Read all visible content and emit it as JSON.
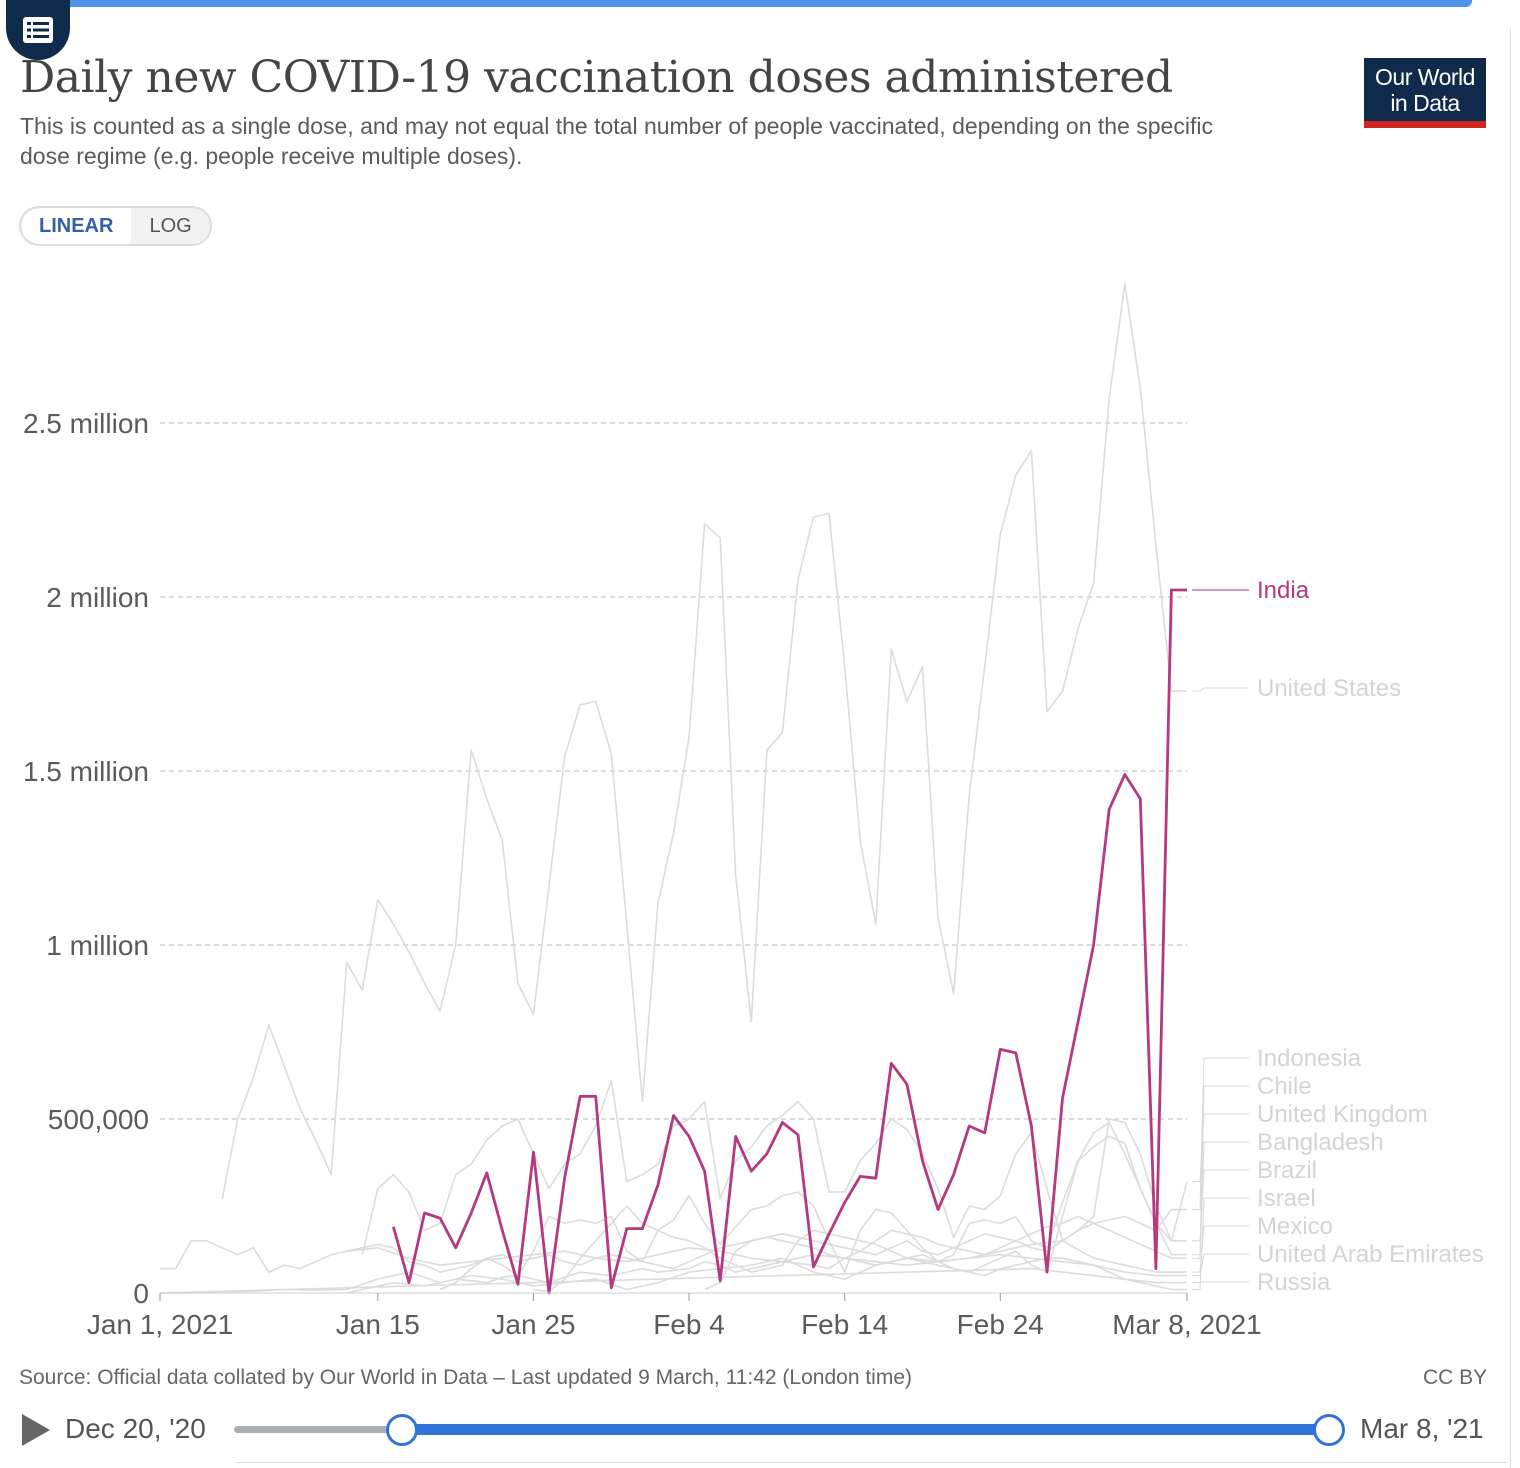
{
  "header": {
    "title": "Daily new COVID-19 vaccination doses administered",
    "subtitle": "This is counted as a single dose, and may not equal the total number of people vaccinated, depending on the specific dose regime (e.g. people receive multiple doses).",
    "logo_line1": "Our World",
    "logo_line2": "in Data"
  },
  "controls": {
    "linear_label": "LINEAR",
    "log_label": "LOG",
    "active_scale": "linear"
  },
  "footer": {
    "source": "Source: Official data collated by Our World in Data – Last updated 9 March, 11:42 (London time)",
    "license": "CC BY"
  },
  "timeline": {
    "start_label": "Dec 20, '20",
    "end_label": "Mar 8, '21"
  },
  "colors": {
    "highlight": "#b5397f",
    "background_series": "#dcdcdc",
    "grid": "#cfcfcf",
    "accent": "#2f74d9",
    "brand": "#0f2a4a"
  },
  "chart_data": {
    "type": "line",
    "title": "Daily new COVID-19 vaccination doses administered",
    "x_start": "2021-01-01",
    "x_end": "2021-03-08",
    "xlim": [
      0,
      66
    ],
    "ylim": [
      0,
      2900000
    ],
    "y_ticks": [
      0,
      500000,
      1000000,
      1500000,
      2000000,
      2500000
    ],
    "y_tick_labels": [
      "0",
      "500,000",
      "1 million",
      "1.5 million",
      "2 million",
      "2.5 million"
    ],
    "x_ticks": [
      0,
      14,
      24,
      34,
      44,
      54,
      66
    ],
    "x_tick_labels": [
      "Jan 1, 2021",
      "Jan 15",
      "Jan 25",
      "Feb 4",
      "Feb 14",
      "Feb 24",
      "Mar 8, 2021"
    ],
    "grid": true,
    "legend_position": "right (labels at line ends)",
    "series": [
      {
        "name": "India",
        "highlight": true,
        "x": [
          15,
          16,
          17,
          18,
          19,
          20,
          21,
          22,
          23,
          24,
          25,
          26,
          27,
          28,
          29,
          30,
          31,
          32,
          33,
          34,
          35,
          36,
          37,
          38,
          39,
          40,
          41,
          42,
          43,
          44,
          45,
          46,
          47,
          48,
          49,
          50,
          51,
          52,
          53,
          54,
          55,
          56,
          57,
          58,
          59,
          60,
          61,
          62,
          63,
          64,
          65,
          66
        ],
        "values": [
          190000,
          30000,
          230000,
          215000,
          130000,
          230000,
          345000,
          180000,
          25000,
          405000,
          0,
          330000,
          565000,
          565000,
          15000,
          185000,
          185000,
          310000,
          510000,
          450000,
          350000,
          35000,
          450000,
          350000,
          400000,
          490000,
          455000,
          75000,
          170000,
          260000,
          335000,
          330000,
          660000,
          600000,
          380000,
          240000,
          340000,
          480000,
          460000,
          700000,
          690000,
          480000,
          60000,
          560000,
          780000,
          1000000,
          1390000,
          1490000,
          1420000,
          70000,
          2020000,
          2020000
        ]
      },
      {
        "name": "United States",
        "highlight": false,
        "x": [
          4,
          5,
          6,
          7,
          8,
          9,
          10,
          11,
          12,
          13,
          14,
          15,
          16,
          17,
          18,
          19,
          20,
          21,
          22,
          23,
          24,
          25,
          26,
          27,
          28,
          29,
          30,
          31,
          32,
          33,
          34,
          35,
          36,
          37,
          38,
          39,
          40,
          41,
          42,
          43,
          44,
          45,
          46,
          47,
          48,
          49,
          50,
          51,
          52,
          53,
          54,
          55,
          56,
          57,
          58,
          59,
          60,
          61,
          62,
          63,
          64,
          65,
          66
        ],
        "values": [
          270000,
          500000,
          620000,
          770000,
          650000,
          530000,
          440000,
          340000,
          950000,
          870000,
          1130000,
          1060000,
          980000,
          890000,
          810000,
          1000000,
          1560000,
          1420000,
          1300000,
          890000,
          800000,
          1170000,
          1540000,
          1690000,
          1700000,
          1550000,
          1060000,
          550000,
          1120000,
          1320000,
          1600000,
          2210000,
          2170000,
          1200000,
          780000,
          1560000,
          1610000,
          2050000,
          2230000,
          2240000,
          1800000,
          1300000,
          1060000,
          1850000,
          1700000,
          1800000,
          1080000,
          860000,
          1430000,
          1800000,
          2180000,
          2350000,
          2420000,
          1670000,
          1730000,
          1910000,
          2040000,
          2570000,
          2900000,
          2600000,
          2150000,
          1730000,
          1730000
        ]
      },
      {
        "name": "Indonesia",
        "highlight": false,
        "x": [
          12,
          13,
          14,
          15,
          16,
          17,
          18,
          19,
          20,
          21,
          22,
          23,
          24,
          25,
          26,
          27,
          28,
          29,
          30,
          31,
          32,
          33,
          34,
          35,
          36,
          37,
          38,
          39,
          40,
          41,
          42,
          43,
          44,
          45,
          46,
          47,
          48,
          49,
          50,
          51,
          52,
          53,
          54,
          55,
          56,
          57,
          58,
          59,
          60,
          61,
          62,
          63,
          64,
          65,
          66
        ],
        "values": [
          0,
          10000,
          20000,
          30000,
          25000,
          20000,
          30000,
          40000,
          35000,
          30000,
          45000,
          50000,
          40000,
          30000,
          45000,
          60000,
          55000,
          50000,
          60000,
          70000,
          60000,
          65000,
          70000,
          90000,
          80000,
          60000,
          70000,
          80000,
          90000,
          85000,
          80000,
          70000,
          100000,
          120000,
          110000,
          130000,
          150000,
          120000,
          110000,
          130000,
          150000,
          170000,
          160000,
          150000,
          130000,
          120000,
          150000,
          180000,
          200000,
          210000,
          220000,
          200000,
          180000,
          240000,
          240000
        ]
      },
      {
        "name": "Chile",
        "highlight": false,
        "x": [
          24,
          25,
          26,
          27,
          28,
          29,
          30,
          31,
          32,
          33,
          34,
          35,
          36,
          37,
          38,
          39,
          40,
          41,
          42,
          43,
          44,
          45,
          46,
          47,
          48,
          49,
          50,
          51,
          52,
          53,
          54,
          55,
          56,
          57,
          58,
          59,
          60,
          61,
          62,
          63,
          64,
          65,
          66
        ],
        "values": [
          10000,
          5000,
          40000,
          100000,
          150000,
          200000,
          250000,
          200000,
          180000,
          160000,
          150000,
          130000,
          100000,
          80000,
          60000,
          70000,
          80000,
          150000,
          180000,
          170000,
          160000,
          150000,
          140000,
          120000,
          100000,
          90000,
          80000,
          70000,
          60000,
          80000,
          100000,
          120000,
          80000,
          60000,
          220000,
          380000,
          460000,
          490000,
          400000,
          300000,
          200000,
          110000,
          110000
        ]
      },
      {
        "name": "United Kingdom",
        "highlight": false,
        "x": [
          13,
          14,
          15,
          16,
          17,
          18,
          19,
          20,
          21,
          22,
          23,
          24,
          25,
          26,
          27,
          28,
          29,
          30,
          31,
          32,
          33,
          34,
          35,
          36,
          37,
          38,
          39,
          40,
          41,
          42,
          43,
          44,
          45,
          46,
          47,
          48,
          49,
          50,
          51,
          52,
          53,
          54,
          55,
          56,
          57,
          58,
          59,
          60,
          61,
          62,
          63,
          64,
          65,
          66
        ],
        "values": [
          110000,
          300000,
          340000,
          290000,
          180000,
          200000,
          340000,
          370000,
          440000,
          480000,
          500000,
          400000,
          300000,
          370000,
          400000,
          480000,
          610000,
          320000,
          340000,
          370000,
          480000,
          500000,
          550000,
          270000,
          380000,
          420000,
          480000,
          510000,
          550000,
          500000,
          290000,
          290000,
          380000,
          430000,
          500000,
          470000,
          400000,
          300000,
          160000,
          250000,
          240000,
          280000,
          400000,
          460000,
          300000,
          150000,
          180000,
          220000,
          500000,
          490000,
          400000,
          250000,
          150000,
          320000
        ]
      },
      {
        "name": "Bangladesh",
        "highlight": false,
        "x": [
          35,
          36,
          37,
          38,
          39,
          40,
          41,
          42,
          43,
          44,
          45,
          46,
          47,
          48,
          49,
          50,
          51,
          52,
          53,
          54,
          55,
          56,
          57,
          58,
          59,
          60,
          61,
          62,
          63,
          64,
          65,
          66
        ],
        "values": [
          10000,
          30000,
          120000,
          150000,
          160000,
          170000,
          160000,
          150000,
          140000,
          130000,
          120000,
          150000,
          180000,
          170000,
          160000,
          140000,
          130000,
          120000,
          110000,
          130000,
          150000,
          170000,
          190000,
          200000,
          220000,
          200000,
          180000,
          160000,
          140000,
          120000,
          100000,
          100000
        ]
      },
      {
        "name": "Brazil",
        "highlight": false,
        "x": [
          18,
          19,
          20,
          21,
          22,
          23,
          24,
          25,
          26,
          27,
          28,
          29,
          30,
          31,
          32,
          33,
          34,
          35,
          36,
          37,
          38,
          39,
          40,
          41,
          42,
          43,
          44,
          45,
          46,
          47,
          48,
          49,
          50,
          51,
          52,
          53,
          54,
          55,
          56,
          57,
          58,
          59,
          60,
          61,
          62,
          63,
          64,
          65,
          66
        ],
        "values": [
          10000,
          30000,
          70000,
          100000,
          80000,
          50000,
          120000,
          220000,
          200000,
          210000,
          200000,
          220000,
          120000,
          90000,
          180000,
          210000,
          280000,
          200000,
          140000,
          190000,
          240000,
          250000,
          280000,
          290000,
          250000,
          150000,
          60000,
          180000,
          240000,
          230000,
          180000,
          130000,
          90000,
          110000,
          200000,
          210000,
          200000,
          220000,
          150000,
          130000,
          260000,
          380000,
          420000,
          450000,
          430000,
          300000,
          200000,
          150000,
          150000
        ]
      },
      {
        "name": "Israel",
        "highlight": false,
        "x": [
          0,
          1,
          2,
          3,
          4,
          5,
          6,
          7,
          8,
          9,
          10,
          11,
          12,
          13,
          14,
          15,
          16,
          17,
          18,
          19,
          20,
          21,
          22,
          23,
          24,
          25,
          26,
          27,
          28,
          29,
          30,
          31,
          32,
          33,
          34,
          35,
          36,
          37,
          38,
          39,
          40,
          41,
          42,
          43,
          44,
          45,
          46,
          47,
          48,
          49,
          50,
          51,
          52,
          53,
          54,
          55,
          56,
          57,
          58,
          59,
          60,
          61,
          62,
          63,
          64,
          65,
          66
        ],
        "values": [
          70000,
          70000,
          150000,
          150000,
          130000,
          110000,
          130000,
          60000,
          80000,
          70000,
          90000,
          110000,
          120000,
          130000,
          140000,
          130000,
          90000,
          80000,
          60000,
          70000,
          80000,
          100000,
          110000,
          90000,
          100000,
          110000,
          90000,
          80000,
          100000,
          110000,
          100000,
          90000,
          80000,
          70000,
          90000,
          110000,
          130000,
          140000,
          150000,
          160000,
          150000,
          140000,
          130000,
          110000,
          100000,
          90000,
          80000,
          90000,
          100000,
          110000,
          90000,
          70000,
          60000,
          50000,
          70000,
          80000,
          90000,
          100000,
          100000,
          90000,
          80000,
          60000,
          40000,
          30000,
          20000,
          10000,
          10000
        ]
      },
      {
        "name": "Mexico",
        "highlight": false,
        "x": [
          0,
          2,
          4,
          6,
          8,
          10,
          12,
          14,
          16,
          18,
          20,
          22,
          24,
          26,
          28,
          30,
          32,
          34,
          36,
          38,
          40,
          42,
          44,
          46,
          48,
          50,
          52,
          54,
          56,
          58,
          60,
          62,
          64,
          66
        ],
        "values": [
          0,
          0,
          5000,
          5000,
          10000,
          8000,
          10000,
          40000,
          60000,
          30000,
          50000,
          40000,
          20000,
          30000,
          40000,
          10000,
          30000,
          60000,
          70000,
          80000,
          100000,
          60000,
          40000,
          80000,
          100000,
          90000,
          100000,
          120000,
          140000,
          150000,
          100000,
          80000,
          60000,
          60000
        ]
      },
      {
        "name": "United Arab Emirates",
        "highlight": false,
        "x": [
          12,
          14,
          16,
          18,
          20,
          22,
          24,
          26,
          28,
          30,
          32,
          34,
          36,
          38,
          40,
          42,
          44,
          46,
          48,
          50,
          52,
          54,
          56,
          58,
          60,
          62,
          64,
          66
        ],
        "values": [
          120000,
          130000,
          100000,
          80000,
          90000,
          100000,
          110000,
          120000,
          100000,
          90000,
          110000,
          130000,
          120000,
          100000,
          90000,
          110000,
          100000,
          90000,
          80000,
          90000,
          100000,
          110000,
          100000,
          90000,
          80000,
          60000,
          50000,
          50000
        ]
      },
      {
        "name": "Russia",
        "highlight": false,
        "x": [
          0,
          4,
          8,
          12,
          16,
          20,
          24,
          28,
          32,
          36,
          40,
          44,
          48,
          52,
          56,
          60,
          64,
          66
        ],
        "values": [
          0,
          5000,
          10000,
          15000,
          20000,
          25000,
          30000,
          35000,
          40000,
          45000,
          50000,
          55000,
          60000,
          65000,
          70000,
          50000,
          30000,
          30000
        ]
      }
    ]
  }
}
